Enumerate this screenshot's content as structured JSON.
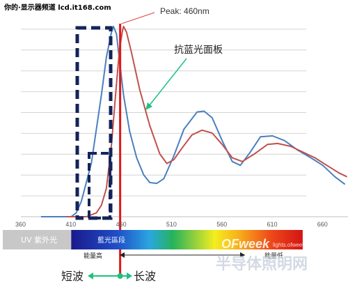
{
  "header": {
    "watermark": "你的·显示器频道 lcd.it168.com",
    "footer_watermark_left": "OFweek",
    "footer_watermark_small": "lights.ofweek.com",
    "footer_watermark_cn": "半导体照明网"
  },
  "chart_data": {
    "type": "line",
    "title": "",
    "xlabel": "",
    "ylabel": "",
    "xlim": [
      360,
      685
    ],
    "ylim": [
      0,
      100
    ],
    "x_ticks": [
      360,
      410,
      460,
      510,
      560,
      610,
      660
    ],
    "y_gridlines": 9,
    "grid": true,
    "series": [
      {
        "name": "",
        "color": "#4a7fbf",
        "points": [
          [
            380,
            0
          ],
          [
            405,
            0
          ],
          [
            410,
            0
          ],
          [
            415,
            2
          ],
          [
            420,
            8
          ],
          [
            430,
            28
          ],
          [
            440,
            64
          ],
          [
            445,
            84
          ],
          [
            450,
            97
          ],
          [
            452,
            100
          ],
          [
            455,
            96
          ],
          [
            458,
            82
          ],
          [
            462,
            64
          ],
          [
            468,
            45
          ],
          [
            475,
            31
          ],
          [
            482,
            22
          ],
          [
            488,
            18
          ],
          [
            495,
            17.5
          ],
          [
            502,
            20
          ],
          [
            512,
            32
          ],
          [
            522,
            46
          ],
          [
            535,
            55
          ],
          [
            542,
            55.5
          ],
          [
            550,
            52
          ],
          [
            560,
            40
          ],
          [
            570,
            29
          ],
          [
            578,
            27
          ],
          [
            588,
            34
          ],
          [
            598,
            42
          ],
          [
            610,
            42.5
          ],
          [
            622,
            40
          ],
          [
            635,
            35
          ],
          [
            648,
            31
          ],
          [
            660,
            27
          ],
          [
            672,
            21
          ],
          [
            682,
            17
          ]
        ]
      },
      {
        "name": "抗蓝光面板",
        "color": "#c0504d",
        "points": [
          [
            405,
            0
          ],
          [
            425,
            0
          ],
          [
            435,
            2
          ],
          [
            440,
            6
          ],
          [
            445,
            15
          ],
          [
            450,
            38
          ],
          [
            455,
            70
          ],
          [
            458,
            88
          ],
          [
            461,
            98
          ],
          [
            462,
            100
          ],
          [
            465,
            97
          ],
          [
            470,
            86
          ],
          [
            478,
            67
          ],
          [
            488,
            48
          ],
          [
            498,
            33
          ],
          [
            505,
            28
          ],
          [
            512,
            30
          ],
          [
            520,
            36
          ],
          [
            530,
            43
          ],
          [
            540,
            45.5
          ],
          [
            550,
            44
          ],
          [
            560,
            38
          ],
          [
            570,
            31
          ],
          [
            580,
            29
          ],
          [
            592,
            33
          ],
          [
            605,
            38
          ],
          [
            615,
            38.5
          ],
          [
            628,
            37
          ],
          [
            640,
            34
          ],
          [
            652,
            31
          ],
          [
            664,
            27
          ],
          [
            676,
            23
          ],
          [
            684,
            21
          ]
        ]
      }
    ],
    "annotations": {
      "peak_label": "Peak: 460nm",
      "peak_wavelength": 460,
      "panel_label": "抗蓝光面板"
    },
    "spectrum_bar": {
      "uv_label": "UV 紫外光",
      "blue_label": "藍光區段",
      "uv_start": 360,
      "uv_end": 410,
      "blue_start": 410,
      "blue_end": 460,
      "end": 640
    },
    "energy": {
      "high_label": "能量高",
      "low_label": "能量低"
    },
    "wave": {
      "short_label": "短波",
      "long_label": "长波"
    }
  }
}
